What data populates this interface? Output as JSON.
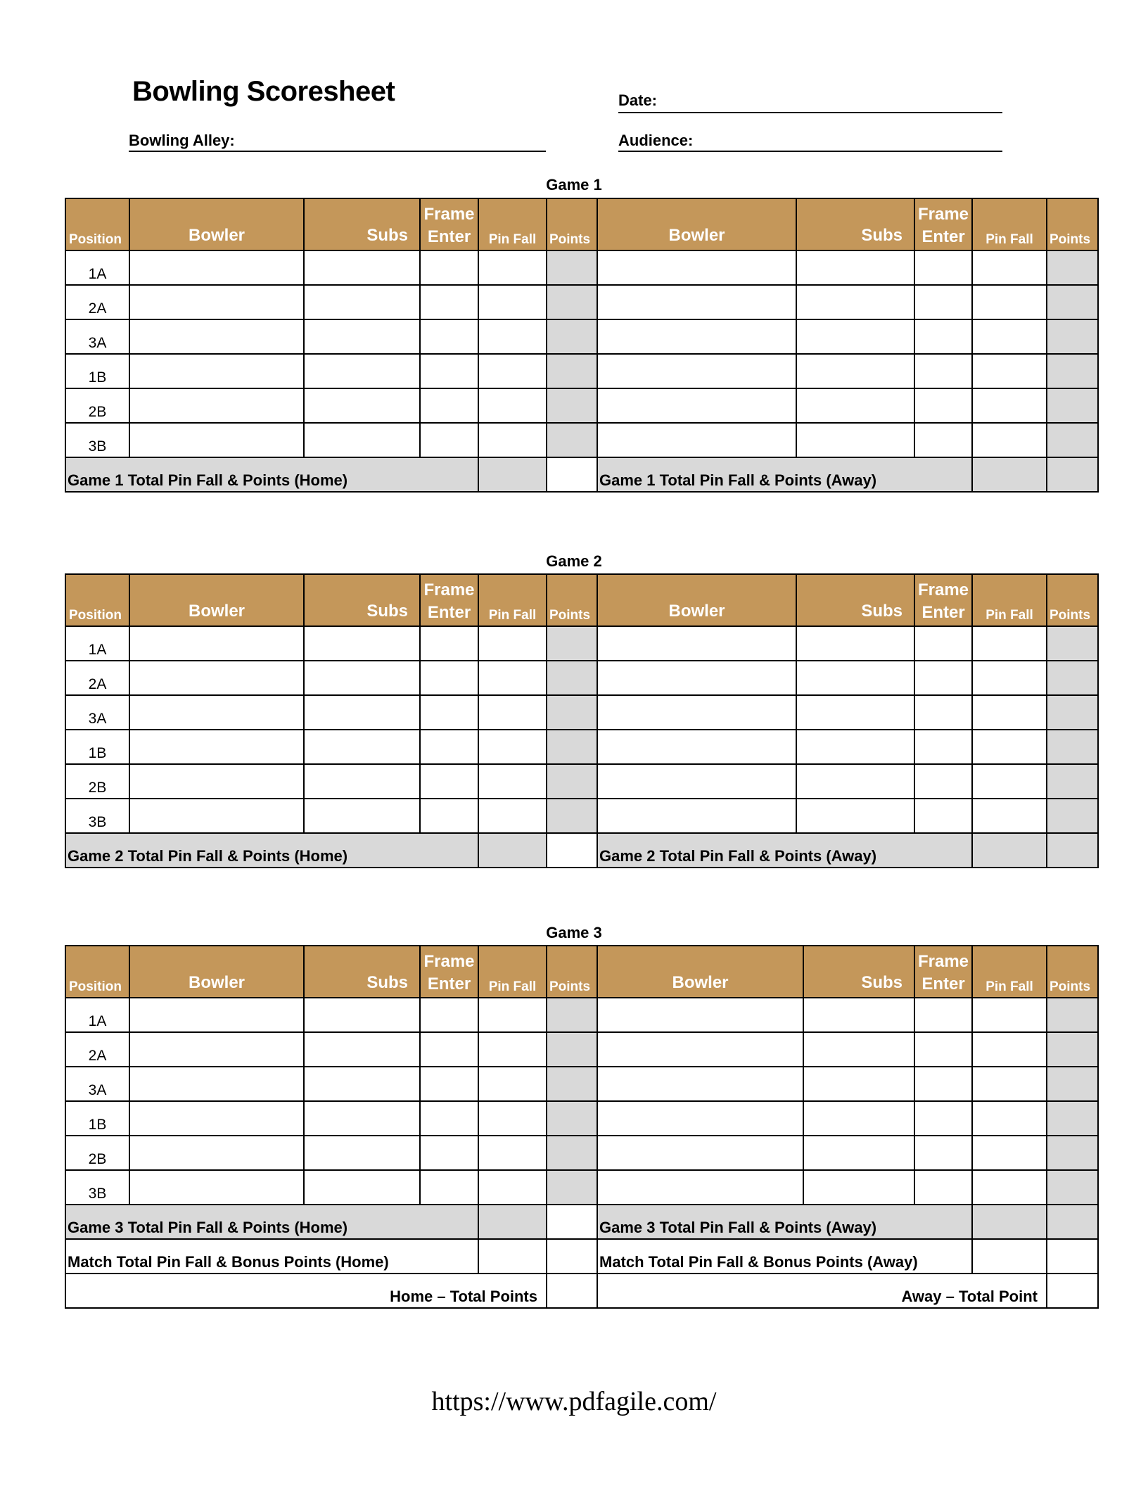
{
  "header": {
    "title": "Bowling Scoresheet",
    "date_label": "Date:",
    "alley_label": "Bowling Alley:",
    "audience_label": "Audience:"
  },
  "columns": {
    "position": "Position",
    "bowler": "Bowler",
    "subs": "Subs",
    "frame_enter_1": "Frame",
    "frame_enter_2": "Enter",
    "pin_fall": "Pin Fall",
    "points": "Points"
  },
  "positions": [
    "1A",
    "2A",
    "3A",
    "1B",
    "2B",
    "3B"
  ],
  "games": [
    {
      "title": "Game 1",
      "home_total": "Game 1 Total Pin Fall & Points (Home)",
      "away_total": "Game 1 Total Pin Fall & Points (Away)"
    },
    {
      "title": "Game 2",
      "home_total": "Game 2 Total Pin Fall & Points (Home)",
      "away_total": "Game 2 Total Pin Fall & Points (Away)"
    },
    {
      "title": "Game 3",
      "home_total": "Game 3 Total Pin Fall & Points (Home)",
      "away_total": "Game 3 Total Pin Fall & Points (Away)"
    }
  ],
  "match": {
    "home_bonus": "Match Total Pin Fall & Bonus Points (Home)",
    "away_bonus": "Match Total Pin Fall & Bonus Points (Away)",
    "home_total_points": "Home – Total Points",
    "away_total_points": "Away – Total Point"
  },
  "colors": {
    "header_bg": "#C4975A",
    "shaded": "#D9D9D9"
  },
  "footer": {
    "url": "https://www.pdfagile.com/"
  }
}
